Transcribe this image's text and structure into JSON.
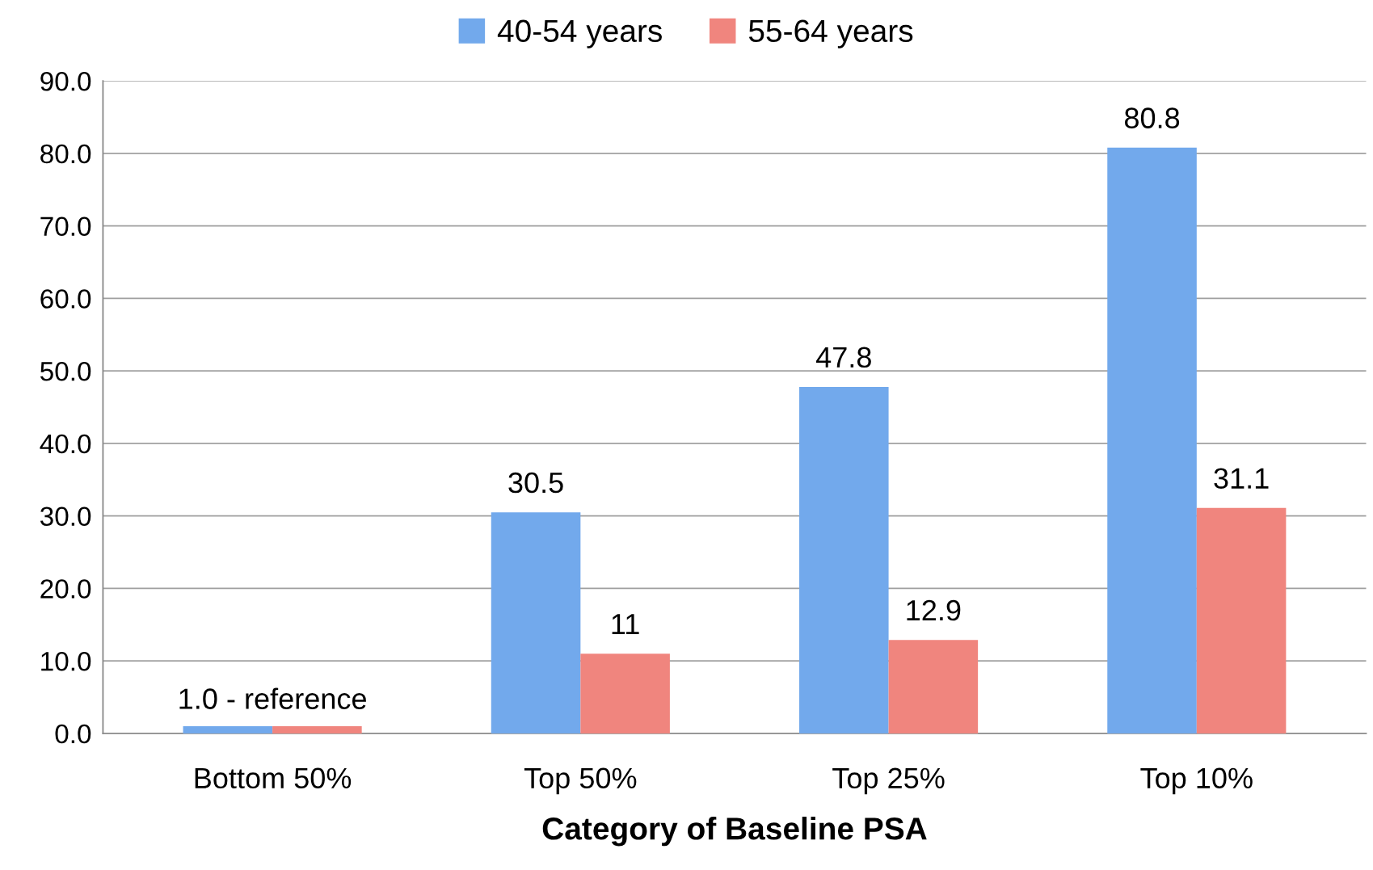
{
  "chart_data": {
    "type": "bar",
    "xlabel": "Category of Baseline PSA",
    "categories": [
      "Bottom 50%",
      "Top 50%",
      "Top 25%",
      "Top 10%"
    ],
    "series": [
      {
        "name": "40-54 years",
        "color": "#72a9ec",
        "values": [
          1.0,
          30.5,
          47.8,
          80.8
        ],
        "value_labels": [
          null,
          "30.5",
          "47.8",
          "80.8"
        ]
      },
      {
        "name": "55-64 years",
        "color": "#f0857e",
        "values": [
          1.0,
          11,
          12.9,
          31.1
        ],
        "value_labels": [
          null,
          "11",
          "12.9",
          "31.1"
        ]
      }
    ],
    "annotations": [
      {
        "text": "1.0 - reference",
        "x": "Bottom 50%",
        "y": 1.0
      }
    ],
    "ylim": [
      0,
      90
    ],
    "yticks": [
      {
        "value": 0,
        "label": "0.0"
      },
      {
        "value": 10,
        "label": "10.0"
      },
      {
        "value": 20,
        "label": "20.0"
      },
      {
        "value": 30,
        "label": "30.0"
      },
      {
        "value": 40,
        "label": "40.0"
      },
      {
        "value": 50,
        "label": "50.0"
      },
      {
        "value": 60,
        "label": "60.0"
      },
      {
        "value": 70,
        "label": "70.0"
      },
      {
        "value": 80,
        "label": "80.0"
      },
      {
        "value": 90,
        "label": "90.0"
      }
    ],
    "grid": "y",
    "legend": "top"
  }
}
